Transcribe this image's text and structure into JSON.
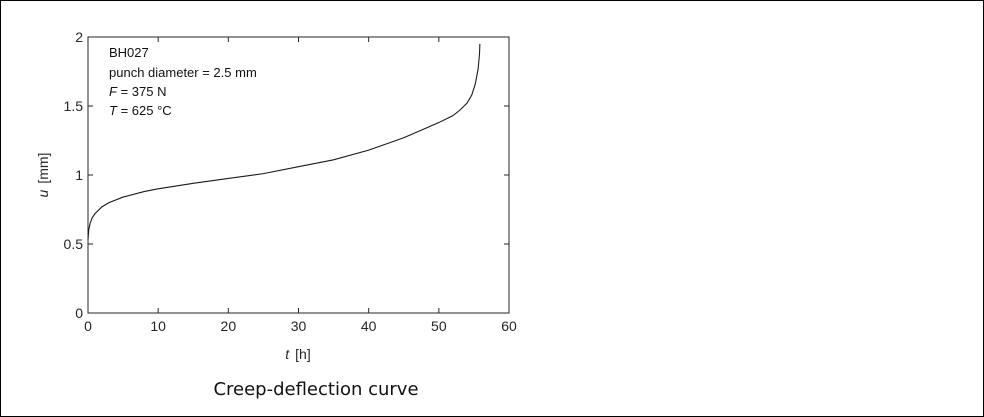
{
  "chart_data": {
    "type": "line",
    "xlabel_var": "t",
    "xlabel_unit": "[h]",
    "ylabel_var": "u",
    "ylabel_unit": "[mm]",
    "xlim": [
      0,
      60
    ],
    "ylim": [
      0,
      2
    ],
    "x_ticks": [
      "0",
      "10",
      "20",
      "30",
      "40",
      "50",
      "60"
    ],
    "y_ticks": [
      "0",
      "0.5",
      "1",
      "1.5",
      "2"
    ],
    "grid": false,
    "annotations": {
      "specimen": "BH027",
      "punch": "punch diameter = 2.5 mm",
      "force_var": "F",
      "force_val": " = 375 N",
      "temp_var": "T",
      "temp_val": " = 625 °C"
    },
    "series": [
      {
        "x": [
          0,
          0.1,
          0.3,
          0.6,
          1,
          2,
          3,
          5,
          8,
          10,
          15,
          20,
          25,
          30,
          35,
          40,
          45,
          50,
          52,
          53,
          54,
          54.7,
          55.2,
          55.6,
          55.8,
          55.85
        ],
        "y": [
          0.53,
          0.6,
          0.65,
          0.69,
          0.72,
          0.77,
          0.8,
          0.84,
          0.88,
          0.9,
          0.94,
          0.975,
          1.01,
          1.06,
          1.11,
          1.18,
          1.27,
          1.38,
          1.43,
          1.47,
          1.52,
          1.58,
          1.66,
          1.77,
          1.88,
          1.95
        ]
      }
    ]
  },
  "caption": "Creep-deflection curve"
}
